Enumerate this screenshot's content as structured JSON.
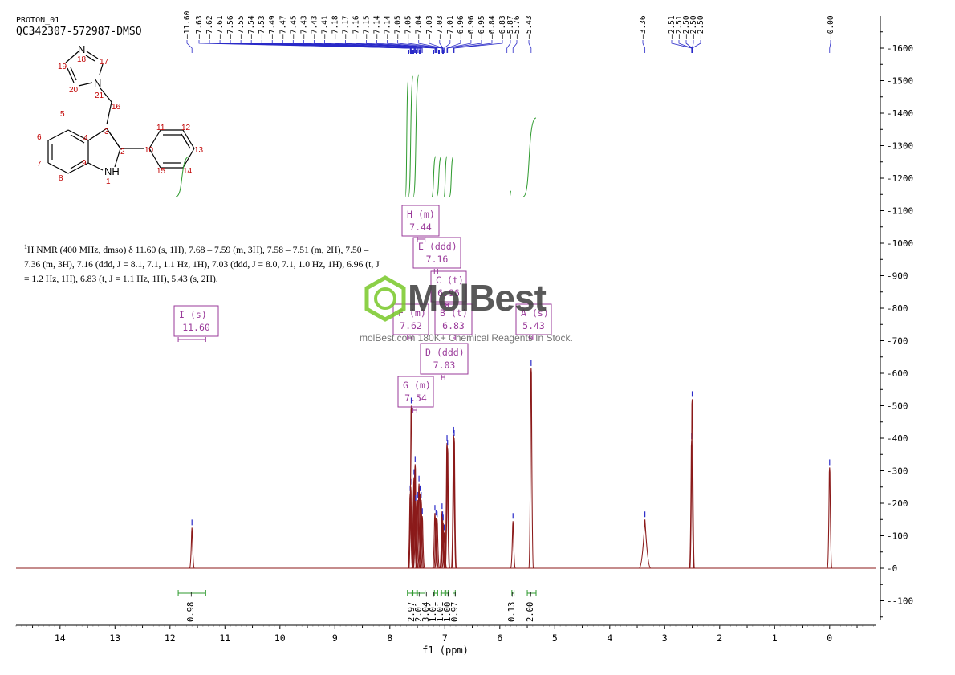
{
  "header": {
    "experiment": "PROTON_01",
    "sample": "QC342307-572987-DMSO"
  },
  "description": {
    "sup": "1",
    "text": "H NMR (400 MHz, dmso) δ 11.60 (s, 1H), 7.68 – 7.59 (m, 3H), 7.58 – 7.51 (m, 2H), 7.50 – 7.36 (m, 3H), 7.16 (ddd, J = 8.1, 7.1, 1.1 Hz, 1H), 7.03 (ddd, J = 8.0, 7.1, 1.0 Hz, 1H), 6.96 (t, J = 1.2 Hz, 1H), 6.83 (t, J = 1.1 Hz, 1H), 5.43 (s, 2H)."
  },
  "watermark": {
    "brand": "MolBest",
    "tagline": "molBest.com 180K+ Chemical Reagents In Stock."
  },
  "structure": {
    "atoms": [
      "N",
      "NH",
      "N",
      "1",
      "5",
      "6",
      "7",
      "8",
      "4",
      "9",
      "3",
      "2",
      "10",
      "11",
      "12",
      "13",
      "14",
      "15",
      "16",
      "17",
      "18",
      "19",
      "20",
      "21"
    ]
  },
  "colors": {
    "spectrum": "#8b1a1a",
    "integral": "#2e9a2e",
    "peak_label": "#2a2ac8",
    "multiplet": "#9a3a9a",
    "axis": "#000000"
  },
  "chart_data": {
    "type": "line",
    "xlabel": "f1 (ppm)",
    "ylabel": "",
    "xlim": [
      14.8,
      -0.85
    ],
    "ylim": [
      -170,
      1700
    ],
    "x_axis_reversed": true,
    "x_ticks": [
      14,
      13,
      12,
      11,
      10,
      9,
      8,
      7,
      6,
      5,
      4,
      3,
      2,
      1,
      0
    ],
    "y_ticks": [
      -100,
      0,
      100,
      200,
      300,
      400,
      500,
      600,
      700,
      800,
      900,
      1000,
      1100,
      1200,
      1300,
      1400,
      1500,
      1600
    ],
    "grid": false,
    "peaks": [
      {
        "ppm": 11.6,
        "height": 125
      },
      {
        "ppm": 7.63,
        "height": 230
      },
      {
        "ppm": 7.62,
        "height": 250
      },
      {
        "ppm": 7.61,
        "height": 500
      },
      {
        "ppm": 7.56,
        "height": 280
      },
      {
        "ppm": 7.55,
        "height": 270
      },
      {
        "ppm": 7.54,
        "height": 320
      },
      {
        "ppm": 7.53,
        "height": 200
      },
      {
        "ppm": 7.49,
        "height": 210
      },
      {
        "ppm": 7.47,
        "height": 260
      },
      {
        "ppm": 7.45,
        "height": 230
      },
      {
        "ppm": 7.43,
        "height": 210
      },
      {
        "ppm": 7.41,
        "height": 160
      },
      {
        "ppm": 7.18,
        "height": 170
      },
      {
        "ppm": 7.16,
        "height": 155
      },
      {
        "ppm": 7.14,
        "height": 150
      },
      {
        "ppm": 7.05,
        "height": 175
      },
      {
        "ppm": 7.04,
        "height": 150
      },
      {
        "ppm": 7.03,
        "height": 140
      },
      {
        "ppm": 7.01,
        "height": 110
      },
      {
        "ppm": 6.96,
        "height": 385
      },
      {
        "ppm": 6.95,
        "height": 370
      },
      {
        "ppm": 6.84,
        "height": 410
      },
      {
        "ppm": 6.83,
        "height": 400
      },
      {
        "ppm": 5.76,
        "height": 145
      },
      {
        "ppm": 5.43,
        "height": 615
      },
      {
        "ppm": 3.36,
        "height": 150
      },
      {
        "ppm": 2.51,
        "height": 390
      },
      {
        "ppm": 2.5,
        "height": 520
      },
      {
        "ppm": 0.0,
        "height": 310
      }
    ],
    "peak_labels": [
      "11.60",
      "7.63",
      "7.62",
      "7.61",
      "7.56",
      "7.55",
      "7.54",
      "7.53",
      "7.49",
      "7.47",
      "7.45",
      "7.43",
      "7.43",
      "7.41",
      "7.18",
      "7.17",
      "7.16",
      "7.15",
      "7.14",
      "7.14",
      "7.05",
      "7.05",
      "7.04",
      "7.03",
      "7.03",
      "7.01",
      "6.96",
      "6.96",
      "6.95",
      "6.84",
      "6.83",
      "5.87",
      "5.76",
      "5.43",
      "3.36",
      "2.51",
      "2.51",
      "2.50",
      "2.50",
      "2.50",
      "0.00"
    ],
    "multiplets": [
      {
        "letter": "I",
        "type": "s",
        "shift": "11.60",
        "range": [
          11.85,
          11.35
        ]
      },
      {
        "letter": "H",
        "type": "m",
        "shift": "7.44",
        "range": [
          7.5,
          7.36
        ]
      },
      {
        "letter": "E",
        "type": "ddd",
        "shift": "7.16",
        "range": [
          7.19,
          7.13
        ]
      },
      {
        "letter": "C",
        "type": "t",
        "shift": "6.96",
        "range": [
          6.98,
          6.94
        ]
      },
      {
        "letter": "F",
        "type": "m",
        "shift": "7.62",
        "range": [
          7.68,
          7.59
        ]
      },
      {
        "letter": "B",
        "type": "t",
        "shift": "6.83",
        "range": [
          6.85,
          6.81
        ]
      },
      {
        "letter": "A",
        "type": "s",
        "shift": "5.43",
        "range": [
          5.46,
          5.4
        ]
      },
      {
        "letter": "D",
        "type": "ddd",
        "shift": "7.03",
        "range": [
          7.06,
          7.0
        ]
      },
      {
        "letter": "G",
        "type": "m",
        "shift": "7.54",
        "range": [
          7.58,
          7.51
        ]
      }
    ],
    "integrals": [
      {
        "ppm": 11.6,
        "value": "0.98",
        "range": [
          11.85,
          11.35
        ]
      },
      {
        "ppm": 7.63,
        "value": "2.97",
        "range": [
          7.68,
          7.59
        ]
      },
      {
        "ppm": 7.55,
        "value": "2.01",
        "range": [
          7.58,
          7.51
        ]
      },
      {
        "ppm": 7.44,
        "value": "3.04",
        "range": [
          7.5,
          7.36
        ]
      },
      {
        "ppm": 7.16,
        "value": "1.01",
        "range": [
          7.19,
          7.13
        ]
      },
      {
        "ppm": 7.03,
        "value": "1.01",
        "range": [
          7.06,
          7.0
        ]
      },
      {
        "ppm": 6.96,
        "value": "1.00",
        "range": [
          6.98,
          6.94
        ]
      },
      {
        "ppm": 6.83,
        "value": "0.97",
        "range": [
          6.85,
          6.81
        ]
      },
      {
        "ppm": 5.76,
        "value": "0.13",
        "range": [
          5.78,
          5.74
        ]
      },
      {
        "ppm": 5.43,
        "value": "2.00",
        "range": [
          5.5,
          5.34
        ]
      }
    ]
  }
}
